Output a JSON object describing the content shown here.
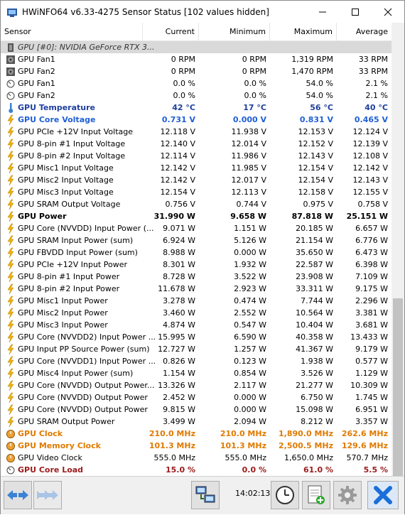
{
  "window": {
    "title": "HWiNFO64 v6.33-4275 Sensor Status [102 values hidden]"
  },
  "columns": {
    "sensor": "Sensor",
    "current": "Current",
    "minimum": "Minimum",
    "maximum": "Maximum",
    "average": "Average"
  },
  "rows": [
    {
      "label": "GPU [#0]: NVIDIA GeForce RTX 3...",
      "icon": "gpu-chip-icon",
      "kind": "group",
      "current": "",
      "minimum": "",
      "maximum": "",
      "average": ""
    },
    {
      "label": "GPU Fan1",
      "icon": "fan-icon",
      "kind": "normal",
      "current": "0 RPM",
      "minimum": "0 RPM",
      "maximum": "1,319 RPM",
      "average": "33 RPM"
    },
    {
      "label": "GPU Fan2",
      "icon": "fan-icon",
      "kind": "normal",
      "current": "0 RPM",
      "minimum": "0 RPM",
      "maximum": "1,470 RPM",
      "average": "33 RPM"
    },
    {
      "label": "GPU Fan1",
      "icon": "gauge-icon",
      "kind": "normal",
      "current": "0.0 %",
      "minimum": "0.0 %",
      "maximum": "54.0 %",
      "average": "2.1 %"
    },
    {
      "label": "GPU Fan2",
      "icon": "gauge-icon",
      "kind": "normal",
      "current": "0.0 %",
      "minimum": "0.0 %",
      "maximum": "54.0 %",
      "average": "2.1 %"
    },
    {
      "label": "GPU Temperature",
      "icon": "thermometer-icon",
      "kind": "darkblue",
      "current": "42 °C",
      "minimum": "17 °C",
      "maximum": "56 °C",
      "average": "40 °C"
    },
    {
      "label": "GPU Core Voltage",
      "icon": "lightning-icon",
      "kind": "blue",
      "current": "0.731 V",
      "minimum": "0.000 V",
      "maximum": "0.831 V",
      "average": "0.465 V"
    },
    {
      "label": "GPU PCIe +12V Input Voltage",
      "icon": "lightning-icon",
      "kind": "normal",
      "current": "12.118 V",
      "minimum": "11.938 V",
      "maximum": "12.153 V",
      "average": "12.124 V"
    },
    {
      "label": "GPU 8-pin #1 Input Voltage",
      "icon": "lightning-icon",
      "kind": "normal",
      "current": "12.140 V",
      "minimum": "12.014 V",
      "maximum": "12.152 V",
      "average": "12.139 V"
    },
    {
      "label": "GPU 8-pin #2 Input Voltage",
      "icon": "lightning-icon",
      "kind": "normal",
      "current": "12.114 V",
      "minimum": "11.986 V",
      "maximum": "12.143 V",
      "average": "12.108 V"
    },
    {
      "label": "GPU Misc1 Input Voltage",
      "icon": "lightning-icon",
      "kind": "normal",
      "current": "12.142 V",
      "minimum": "11.985 V",
      "maximum": "12.154 V",
      "average": "12.142 V"
    },
    {
      "label": "GPU Misc2 Input Voltage",
      "icon": "lightning-icon",
      "kind": "normal",
      "current": "12.142 V",
      "minimum": "12.017 V",
      "maximum": "12.154 V",
      "average": "12.143 V"
    },
    {
      "label": "GPU Misc3 Input Voltage",
      "icon": "lightning-icon",
      "kind": "normal",
      "current": "12.154 V",
      "minimum": "12.113 V",
      "maximum": "12.158 V",
      "average": "12.155 V"
    },
    {
      "label": "GPU SRAM Output Voltage",
      "icon": "lightning-icon",
      "kind": "normal",
      "current": "0.756 V",
      "minimum": "0.744 V",
      "maximum": "0.975 V",
      "average": "0.758 V"
    },
    {
      "label": "GPU Power",
      "icon": "lightning-icon",
      "kind": "bold",
      "current": "31.990 W",
      "minimum": "9.658 W",
      "maximum": "87.818 W",
      "average": "25.151 W"
    },
    {
      "label": "GPU Core (NVVDD) Input Power (...",
      "icon": "lightning-icon",
      "kind": "normal",
      "current": "9.071 W",
      "minimum": "1.151 W",
      "maximum": "20.185 W",
      "average": "6.657 W"
    },
    {
      "label": "GPU SRAM Input Power (sum)",
      "icon": "lightning-icon",
      "kind": "normal",
      "current": "6.924 W",
      "minimum": "5.126 W",
      "maximum": "21.154 W",
      "average": "6.776 W"
    },
    {
      "label": "GPU FBVDD Input Power (sum)",
      "icon": "lightning-icon",
      "kind": "normal",
      "current": "8.988 W",
      "minimum": "0.000 W",
      "maximum": "35.650 W",
      "average": "6.473 W"
    },
    {
      "label": "GPU PCIe +12V Input Power",
      "icon": "lightning-icon",
      "kind": "normal",
      "current": "8.301 W",
      "minimum": "1.932 W",
      "maximum": "22.587 W",
      "average": "6.398 W"
    },
    {
      "label": "GPU 8-pin #1 Input Power",
      "icon": "lightning-icon",
      "kind": "normal",
      "current": "8.728 W",
      "minimum": "3.522 W",
      "maximum": "23.908 W",
      "average": "7.109 W"
    },
    {
      "label": "GPU 8-pin #2 Input Power",
      "icon": "lightning-icon",
      "kind": "normal",
      "current": "11.678 W",
      "minimum": "2.923 W",
      "maximum": "33.311 W",
      "average": "9.175 W"
    },
    {
      "label": "GPU Misc1 Input Power",
      "icon": "lightning-icon",
      "kind": "normal",
      "current": "3.278 W",
      "minimum": "0.474 W",
      "maximum": "7.744 W",
      "average": "2.296 W"
    },
    {
      "label": "GPU Misc2 Input Power",
      "icon": "lightning-icon",
      "kind": "normal",
      "current": "3.460 W",
      "minimum": "2.552 W",
      "maximum": "10.564 W",
      "average": "3.381 W"
    },
    {
      "label": "GPU Misc3 Input Power",
      "icon": "lightning-icon",
      "kind": "normal",
      "current": "4.874 W",
      "minimum": "0.547 W",
      "maximum": "10.404 W",
      "average": "3.681 W"
    },
    {
      "label": "GPU Core (NVVDD2) Input Power ...",
      "icon": "lightning-icon",
      "kind": "normal",
      "current": "15.995 W",
      "minimum": "6.590 W",
      "maximum": "40.358 W",
      "average": "13.433 W"
    },
    {
      "label": "GPU Input PP Source Power (sum)",
      "icon": "lightning-icon",
      "kind": "normal",
      "current": "12.727 W",
      "minimum": "1.257 W",
      "maximum": "41.367 W",
      "average": "9.179 W"
    },
    {
      "label": "GPU Core (NVVDD1) Input Power ...",
      "icon": "lightning-icon",
      "kind": "normal",
      "current": "0.826 W",
      "minimum": "0.123 W",
      "maximum": "1.938 W",
      "average": "0.577 W"
    },
    {
      "label": "GPU Misc4 Input Power (sum)",
      "icon": "lightning-icon",
      "kind": "normal",
      "current": "1.154 W",
      "minimum": "0.854 W",
      "maximum": "3.526 W",
      "average": "1.129 W"
    },
    {
      "label": "GPU Core (NVVDD) Output Power...",
      "icon": "lightning-icon",
      "kind": "normal",
      "current": "13.326 W",
      "minimum": "2.117 W",
      "maximum": "21.277 W",
      "average": "10.309 W"
    },
    {
      "label": "GPU Core (NVVDD) Output Power",
      "icon": "lightning-icon",
      "kind": "normal",
      "current": "2.452 W",
      "minimum": "0.000 W",
      "maximum": "6.750 W",
      "average": "1.745 W"
    },
    {
      "label": "GPU Core (NVVDD) Output Power",
      "icon": "lightning-icon",
      "kind": "normal",
      "current": "9.815 W",
      "minimum": "0.000 W",
      "maximum": "15.098 W",
      "average": "6.951 W"
    },
    {
      "label": "GPU SRAM Output Power",
      "icon": "lightning-icon",
      "kind": "normal",
      "current": "3.499 W",
      "minimum": "2.094 W",
      "maximum": "8.212 W",
      "average": "3.357 W"
    },
    {
      "label": "GPU Clock",
      "icon": "clock-gauge-icon",
      "kind": "orange",
      "current": "210.0 MHz",
      "minimum": "210.0 MHz",
      "maximum": "1,890.0 MHz",
      "average": "262.6 MHz"
    },
    {
      "label": "GPU Memory Clock",
      "icon": "clock-gauge-icon",
      "kind": "orange",
      "current": "101.3 MHz",
      "minimum": "101.3 MHz",
      "maximum": "2,500.5 MHz",
      "average": "129.6 MHz"
    },
    {
      "label": "GPU Video Clock",
      "icon": "clock-gauge-icon",
      "kind": "normal",
      "current": "555.0 MHz",
      "minimum": "555.0 MHz",
      "maximum": "1,650.0 MHz",
      "average": "570.7 MHz"
    },
    {
      "label": "GPU Core Load",
      "icon": "gauge-icon",
      "kind": "darkred",
      "current": "15.0 %",
      "minimum": "0.0 %",
      "maximum": "61.0 %",
      "average": "5.5 %"
    }
  ],
  "statusbar": {
    "time": "14:02:13"
  },
  "colors": {
    "lightning": "#f0b400",
    "blue_text": "#1f5fd6",
    "orange_text": "#e07a00",
    "darkred_text": "#9b1b1b",
    "close_button": "#1a6fd8"
  }
}
